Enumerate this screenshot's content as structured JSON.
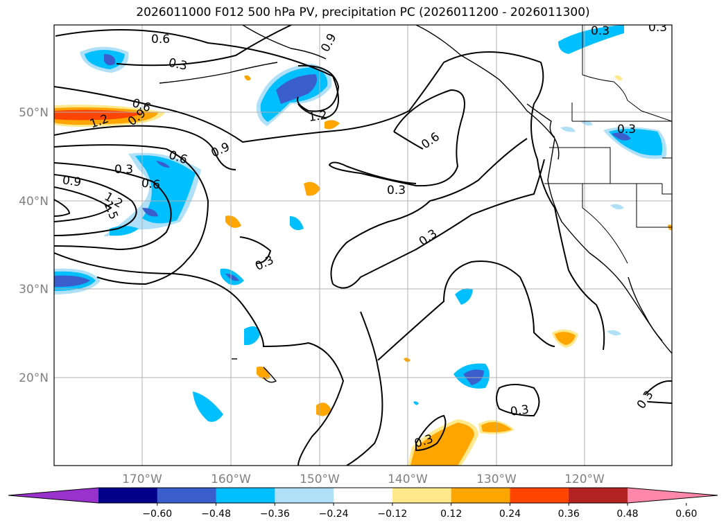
{
  "title": "2026011000 F012 500 hPa PV, precipitation PC (2026011200 - 2026011300)",
  "latitude_labels": [
    "50°N",
    "40°N",
    "30°N",
    "20°N"
  ],
  "longitude_labels": [
    "170°W",
    "160°W",
    "150°W",
    "140°W",
    "130°W",
    "120°W"
  ],
  "contour_labels": [
    "0.6",
    "0.3",
    "0.9",
    "1.2",
    "1.2",
    "0.9",
    "0.6",
    "0.3",
    "0.6",
    "0.9",
    "1.2",
    "1.5",
    "0.6",
    "0.6",
    "0.9",
    "0.3",
    "0.3",
    "0.3",
    "0.3",
    "0.3",
    "0.3",
    "0.3",
    "0.3",
    "0.3"
  ],
  "colorbar": {
    "ticks": [
      "−0.60",
      "−0.48",
      "−0.36",
      "−0.24",
      "−0.12",
      "0.12",
      "0.24",
      "0.36",
      "0.48",
      "0.60"
    ],
    "colors": [
      "#9932cc",
      "#00008b",
      "#3a5fcd",
      "#00bfff",
      "#afe0f8",
      "#ffffff",
      "#ffe98c",
      "#ffa500",
      "#ff4500",
      "#b22222",
      "#ff88aa"
    ]
  },
  "colors": {
    "contour": "#000000",
    "grid": "#b0b0b0",
    "axis_label": "#808080"
  }
}
